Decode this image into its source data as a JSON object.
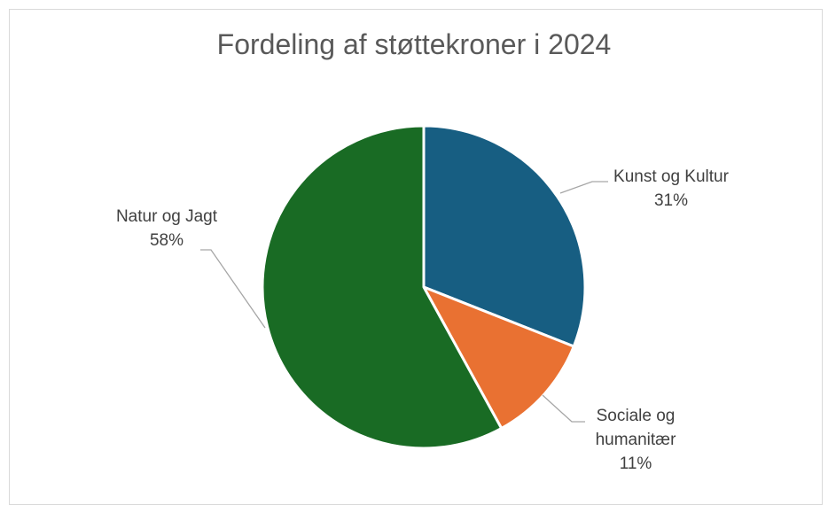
{
  "chart_data": {
    "type": "pie",
    "title": "Fordeling af støttekroner i 2024",
    "slices": [
      {
        "label_lines": [
          "Kunst og Kultur"
        ],
        "value": 31,
        "value_label": "31%",
        "color": "#175e82"
      },
      {
        "label_lines": [
          "Sociale og",
          "humanitær"
        ],
        "value": 11,
        "value_label": "11%",
        "color": "#e97132"
      },
      {
        "label_lines": [
          "Natur og Jagt"
        ],
        "value": 58,
        "value_label": "58%",
        "color": "#196b24"
      }
    ],
    "legend": "none"
  }
}
